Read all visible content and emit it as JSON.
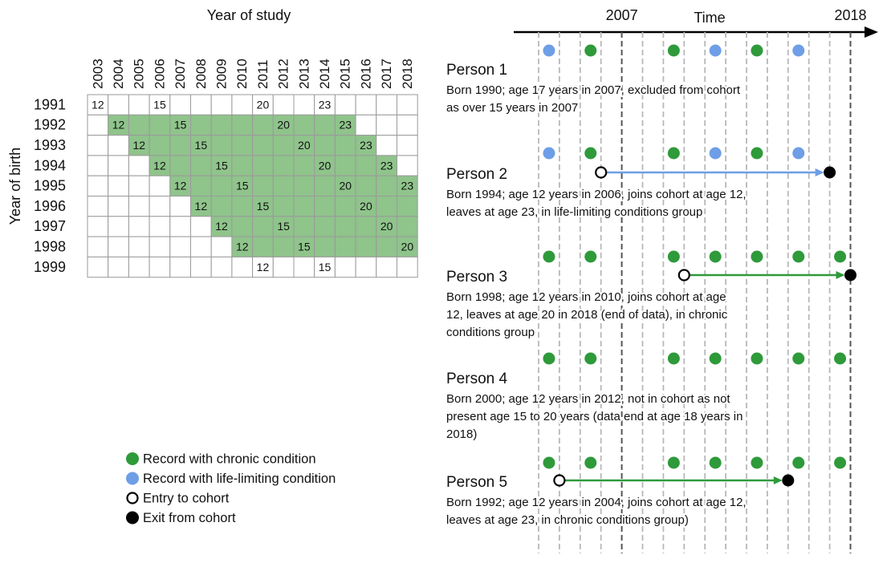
{
  "left": {
    "title": "Year of study",
    "y_axis_label": "Year of birth",
    "columns": [
      2003,
      2004,
      2005,
      2006,
      2007,
      2008,
      2009,
      2010,
      2011,
      2012,
      2013,
      2014,
      2015,
      2016,
      2017,
      2018
    ],
    "rows": [
      {
        "label": "1991",
        "cells": [
          12,
          null,
          null,
          15,
          null,
          null,
          null,
          null,
          20,
          null,
          null,
          23,
          null,
          null,
          null,
          null
        ]
      },
      {
        "label": "1992",
        "cells": [
          null,
          12,
          null,
          null,
          15,
          null,
          null,
          null,
          null,
          20,
          null,
          null,
          23,
          null,
          null,
          null
        ],
        "shaded": [
          false,
          true,
          true,
          true,
          true,
          true,
          true,
          true,
          true,
          true,
          true,
          true,
          true,
          false,
          false,
          false
        ]
      },
      {
        "label": "1993",
        "cells": [
          null,
          null,
          12,
          null,
          null,
          15,
          null,
          null,
          null,
          null,
          20,
          null,
          null,
          23,
          null,
          null
        ],
        "shaded": [
          false,
          false,
          true,
          true,
          true,
          true,
          true,
          true,
          true,
          true,
          true,
          true,
          true,
          true,
          false,
          false
        ]
      },
      {
        "label": "1994",
        "cells": [
          null,
          null,
          null,
          12,
          null,
          null,
          15,
          null,
          null,
          null,
          null,
          20,
          null,
          null,
          23,
          null
        ],
        "shaded": [
          false,
          false,
          false,
          true,
          true,
          true,
          true,
          true,
          true,
          true,
          true,
          true,
          true,
          true,
          true,
          false
        ]
      },
      {
        "label": "1995",
        "cells": [
          null,
          null,
          null,
          null,
          12,
          null,
          null,
          15,
          null,
          null,
          null,
          null,
          20,
          null,
          null,
          23
        ],
        "shaded": [
          false,
          false,
          false,
          false,
          true,
          true,
          true,
          true,
          true,
          true,
          true,
          true,
          true,
          true,
          true,
          true
        ]
      },
      {
        "label": "1996",
        "cells": [
          null,
          null,
          null,
          null,
          null,
          12,
          null,
          null,
          15,
          null,
          null,
          null,
          null,
          20,
          null,
          null
        ],
        "shaded": [
          false,
          false,
          false,
          false,
          false,
          true,
          true,
          true,
          true,
          true,
          true,
          true,
          true,
          true,
          true,
          true
        ]
      },
      {
        "label": "1997",
        "cells": [
          null,
          null,
          null,
          null,
          null,
          null,
          12,
          null,
          null,
          15,
          null,
          null,
          null,
          null,
          20,
          null
        ],
        "shaded": [
          false,
          false,
          false,
          false,
          false,
          false,
          true,
          true,
          true,
          true,
          true,
          true,
          true,
          true,
          true,
          true
        ]
      },
      {
        "label": "1998",
        "cells": [
          null,
          null,
          null,
          null,
          null,
          null,
          null,
          12,
          null,
          null,
          15,
          null,
          null,
          null,
          null,
          20
        ],
        "shaded": [
          false,
          false,
          false,
          false,
          false,
          false,
          false,
          true,
          true,
          true,
          true,
          true,
          true,
          true,
          true,
          true
        ]
      },
      {
        "label": "1999",
        "cells": [
          null,
          null,
          null,
          null,
          null,
          null,
          null,
          null,
          12,
          null,
          null,
          15,
          null,
          null,
          null,
          null
        ]
      }
    ]
  },
  "timeline": {
    "axis_label": "Time",
    "year_marks": [
      2007,
      2018
    ],
    "persons": [
      {
        "name": "Person 1",
        "description": [
          "Born 1990; age 17 years in 2007, excluded from cohort",
          "as over 15 years in 2007"
        ]
      },
      {
        "name": "Person 2",
        "description": [
          "Born 1994; age 12 years in 2006, joins cohort at age 12,",
          "leaves at age 23, in life-limiting conditions group"
        ]
      },
      {
        "name": "Person 3",
        "description": [
          "Born 1998; age 12 years in 2010, joins cohort at age",
          "12, leaves at age 20 in 2018 (end of data), in chronic",
          "conditions group"
        ]
      },
      {
        "name": "Person 4",
        "description": [
          "Born 2000; age 12 years in 2012, not in cohort as not",
          "present age 15 to 20 years (data end at age 18 years in",
          "2018)"
        ]
      },
      {
        "name": "Person 5",
        "description": [
          "Born 1992; age 12 years in 2004, joins cohort at age 12,",
          "leaves at age 23, in chronic conditions group)"
        ]
      }
    ]
  },
  "legend": [
    "Record with chronic condition",
    "Record with life-limiting condition",
    "Entry to cohort",
    "Exit from cohort"
  ]
}
